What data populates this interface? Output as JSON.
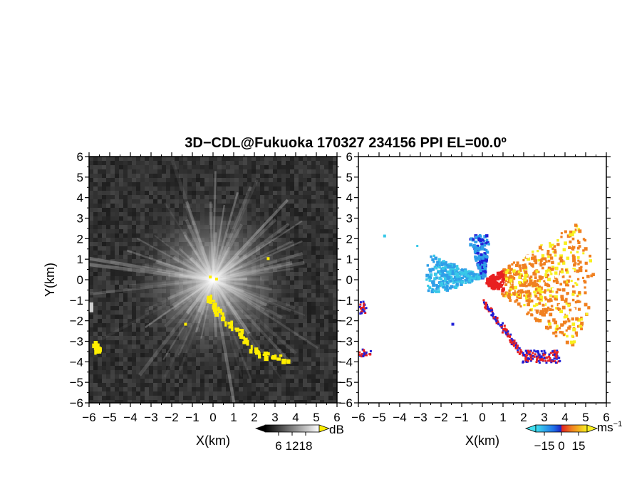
{
  "title": "3D−CDL@Fukuoka 170327 234156 PPI EL=00.0º",
  "chart_data": [
    {
      "type": "heatmap",
      "panel": "left",
      "quantity_unit": "dB",
      "xlabel": "X(km)",
      "ylabel": "Y(km)",
      "xlim": [
        -6,
        6
      ],
      "ylim": [
        -6,
        6
      ],
      "x_ticks": [
        "−6",
        "−5",
        "−4",
        "−3",
        "−2",
        "−1",
        "0",
        "1",
        "2",
        "3",
        "4",
        "5",
        "6"
      ],
      "y_ticks": [
        "6",
        "5",
        "4",
        "3",
        "2",
        "1",
        "0",
        "−1",
        "−2",
        "−3",
        "−4",
        "−5",
        "−6"
      ],
      "colorbar": {
        "tick_labels": [
          "6",
          "12",
          "18"
        ],
        "unit": "dB",
        "colormap": "grayscale"
      },
      "background": "#2b2b2b",
      "highlight_color": "#ffee00",
      "highlight_regions": [
        {
          "x": [
            -0.3,
            0.2,
            1.2,
            2.0,
            3.5
          ],
          "y": [
            -0.8,
            -1.5,
            -2.5,
            -3.5,
            -3.8
          ]
        },
        {
          "x": [
            -5.8,
            -5.6
          ],
          "y": [
            -3.1,
            -3.4
          ]
        }
      ]
    },
    {
      "type": "heatmap",
      "panel": "right",
      "quantity_unit": "ms⁻¹",
      "xlabel": "X(km)",
      "ylabel": "",
      "xlim": [
        -6,
        6
      ],
      "ylim": [
        -6,
        6
      ],
      "x_ticks": [
        "−6",
        "−5",
        "−4",
        "−3",
        "−2",
        "−1",
        "0",
        "1",
        "2",
        "3",
        "4",
        "5",
        "6"
      ],
      "y_ticks": [
        "6",
        "5",
        "4",
        "3",
        "2",
        "1",
        "0",
        "−1",
        "−2",
        "−3",
        "−4",
        "−5",
        "−6"
      ],
      "colorbar": {
        "tick_labels": [
          "−15",
          "0",
          "15"
        ],
        "unit": "ms",
        "unit_sup": "−1",
        "colormap": "blue-red-yellow"
      },
      "background": "#ffffff",
      "colors": {
        "negative": "#2f9fe8",
        "zero_neg": "#2020d8",
        "zero_pos": "#e82020",
        "positive": "#f08020",
        "high": "#f8f020"
      }
    }
  ]
}
